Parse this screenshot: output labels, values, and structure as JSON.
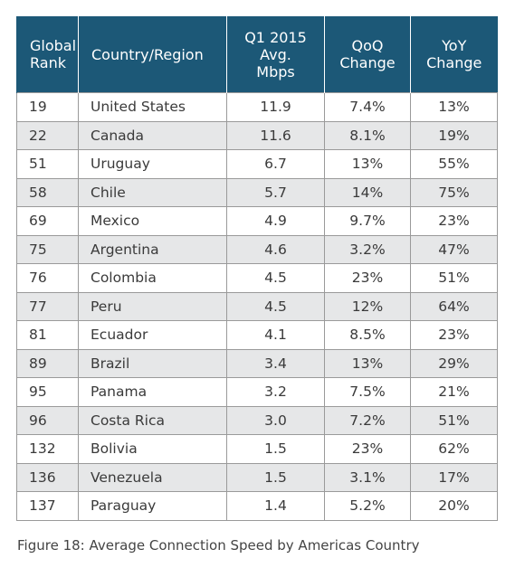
{
  "table": {
    "header": [
      "Global\nRank",
      "Country/Region",
      "Q1 2015\nAvg.\nMbps",
      "QoQ\nChange",
      "YoY\nChange"
    ],
    "rows": [
      [
        "19",
        "United States",
        "11.9",
        "7.4%",
        "13%"
      ],
      [
        "22",
        "Canada",
        "11.6",
        "8.1%",
        "19%"
      ],
      [
        "51",
        "Uruguay",
        "6.7",
        "13%",
        "55%"
      ],
      [
        "58",
        "Chile",
        "5.7",
        "14%",
        "75%"
      ],
      [
        "69",
        "Mexico",
        "4.9",
        "9.7%",
        "23%"
      ],
      [
        "75",
        "Argentina",
        "4.6",
        "3.2%",
        "47%"
      ],
      [
        "76",
        "Colombia",
        "4.5",
        "23%",
        "51%"
      ],
      [
        "77",
        "Peru",
        "4.5",
        "12%",
        "64%"
      ],
      [
        "81",
        "Ecuador",
        "4.1",
        "8.5%",
        "23%"
      ],
      [
        "89",
        "Brazil",
        "3.4",
        "13%",
        "29%"
      ],
      [
        "95",
        "Panama",
        "3.2",
        "7.5%",
        "21%"
      ],
      [
        "96",
        "Costa Rica",
        "3.0",
        "7.2%",
        "51%"
      ],
      [
        "132",
        "Bolivia",
        "1.5",
        "23%",
        "62%"
      ],
      [
        "136",
        "Venezuela",
        "1.5",
        "3.1%",
        "17%"
      ],
      [
        "137",
        "Paraguay",
        "1.4",
        "5.2%",
        "20%"
      ]
    ]
  },
  "caption": "Figure 18: Average Connection Speed by Americas Country"
}
